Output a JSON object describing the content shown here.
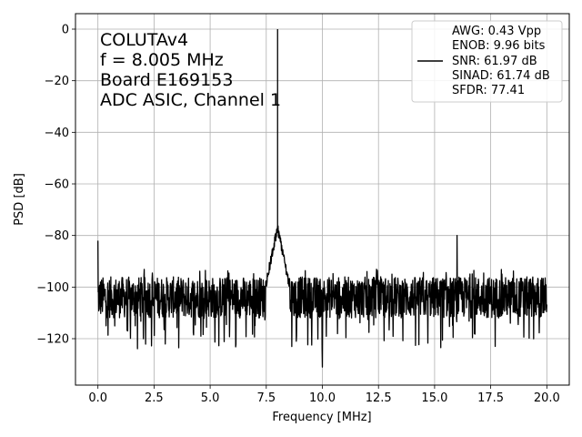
{
  "chart_data": {
    "type": "line",
    "xlabel": "Frequency [MHz]",
    "ylabel": "PSD [dB]",
    "xlim": [
      -1.0,
      21.0
    ],
    "ylim": [
      -138,
      6
    ],
    "xticks": [
      0.0,
      2.5,
      5.0,
      7.5,
      10.0,
      12.5,
      15.0,
      17.5,
      20.0
    ],
    "xtick_labels": [
      "0.0",
      "2.5",
      "5.0",
      "7.5",
      "10.0",
      "12.5",
      "15.0",
      "17.5",
      "20.0"
    ],
    "yticks": [
      0,
      -20,
      -40,
      -60,
      -80,
      -100,
      -120
    ],
    "ytick_labels": [
      "0",
      "−20",
      "−40",
      "−60",
      "−80",
      "−100",
      "−120"
    ],
    "grid": true,
    "annotations": [
      "COLUTAv4",
      "f = 8.005 MHz",
      "Board E169153",
      "ADC ASIC, Channel  1"
    ],
    "legend": {
      "placement": "top-right",
      "lines": [
        "AWG: 0.43 Vpp",
        "ENOB: 9.96 bits",
        "SNR: 61.97 dB",
        "SINAD: 61.74 dB",
        "SFDR: 77.41"
      ]
    },
    "series": [
      {
        "color": "#000000",
        "features": {
          "noise_floor_db": -104,
          "dc_spur": {
            "x": 0.0,
            "y": -82
          },
          "main_tone": {
            "x": 8.005,
            "y": 0
          },
          "tone_skirt_peak_db": -79,
          "spur": {
            "x": 16.0,
            "y": -80
          },
          "min_dip": {
            "x": 10.0,
            "y": -131
          }
        }
      }
    ]
  }
}
